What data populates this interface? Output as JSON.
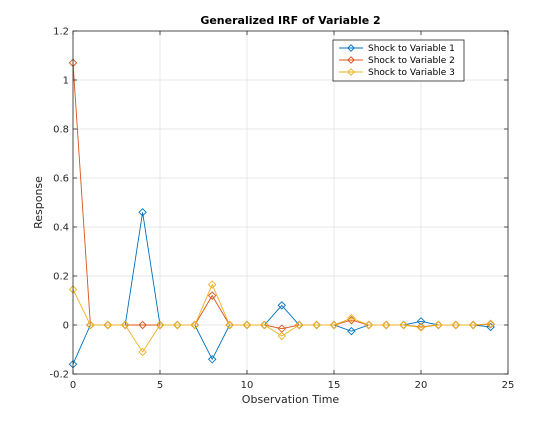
{
  "chart_data": {
    "type": "line",
    "title": "Generalized IRF of Variable 2",
    "xlabel": "Observation Time",
    "ylabel": "Response",
    "xlim": [
      0,
      25
    ],
    "ylim": [
      -0.2,
      1.2
    ],
    "xticks": [
      0,
      5,
      10,
      15,
      20,
      25
    ],
    "yticks": [
      -0.2,
      0,
      0.2,
      0.4,
      0.6,
      0.8,
      1,
      1.2
    ],
    "xtick_labels": [
      "0",
      "5",
      "10",
      "15",
      "20",
      "25"
    ],
    "ytick_labels": [
      "-0.2",
      "0",
      "0.2",
      "0.4",
      "0.6",
      "0.8",
      "1",
      "1.2"
    ],
    "grid": true,
    "legend_position": "top-right",
    "marker": "diamond",
    "x": [
      0,
      1,
      2,
      3,
      4,
      5,
      6,
      7,
      8,
      9,
      10,
      11,
      12,
      13,
      14,
      15,
      16,
      17,
      18,
      19,
      20,
      21,
      22,
      23,
      24
    ],
    "series": [
      {
        "name": "Shock to Variable 1",
        "color": "#0072BD",
        "values": [
          -0.16,
          0,
          0,
          0,
          0.46,
          0,
          0,
          0,
          -0.14,
          0,
          0,
          0,
          0.08,
          0,
          0,
          0,
          -0.025,
          0,
          0,
          0,
          0.015,
          0,
          0,
          0,
          -0.008
        ]
      },
      {
        "name": "Shock to Variable 2",
        "color": "#D95319",
        "values": [
          1.07,
          0,
          0,
          0,
          0,
          0,
          0,
          0,
          0.12,
          0,
          0,
          0,
          -0.015,
          0,
          0,
          0,
          0.02,
          0,
          0,
          0,
          -0.008,
          0,
          0,
          0,
          0.003
        ]
      },
      {
        "name": "Shock to Variable 3",
        "color": "#EDB120",
        "values": [
          0.145,
          0,
          0,
          0,
          -0.11,
          0,
          0,
          0,
          0.165,
          0,
          0,
          0,
          -0.045,
          0,
          0,
          0,
          0.028,
          0,
          0,
          0,
          -0.01,
          0,
          0,
          0,
          0.005
        ]
      }
    ]
  }
}
